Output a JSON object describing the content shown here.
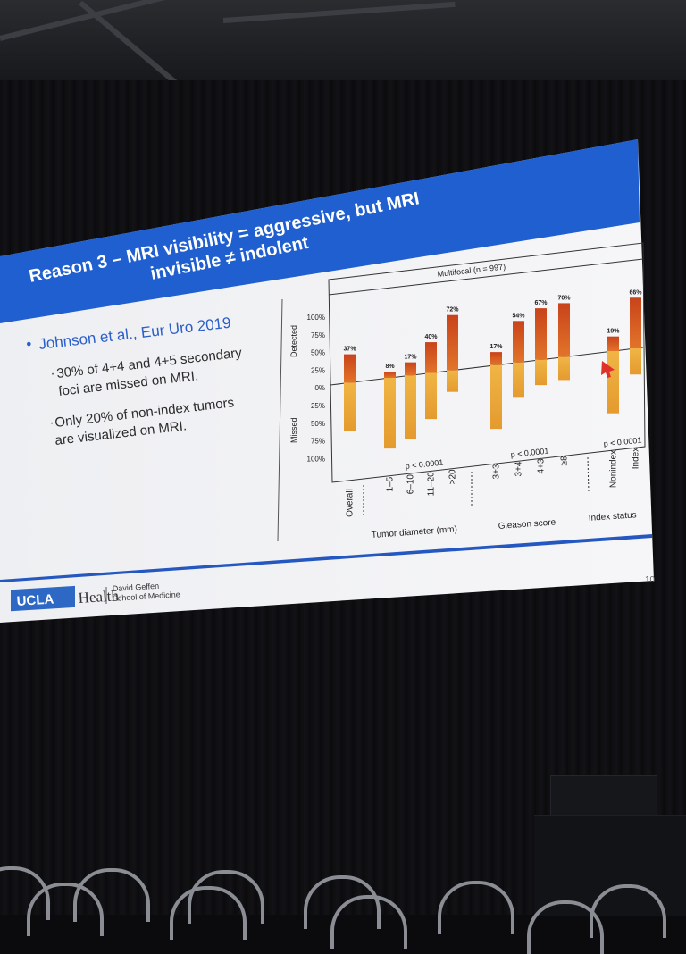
{
  "slide": {
    "title_line1": "Reason 3 – MRI visibility = aggressive, but MRI",
    "title_line2": "invisible ≠ indolent",
    "bullet_main": "Johnson et al., Eur Uro 2019",
    "sub_bullet1_line1": "30% of 4+4 and 4+5 secondary",
    "sub_bullet1_line2": "foci are missed on MRI.",
    "sub_bullet2_line1": "Only 20% of non-index tumors",
    "sub_bullet2_line2": "are visualized on MRI.",
    "slide_number": "10",
    "footer": {
      "logo_text": "UCLA",
      "health_text": "Health",
      "school_line1": "David Geffen",
      "school_line2": "School of Medicine"
    },
    "colors": {
      "title_bar": "#1f5fcf",
      "detected": "#d95420",
      "missed": "#eda53a",
      "footer_line": "#2457c0"
    }
  },
  "chart_data": {
    "type": "bar",
    "title": "Multifocal (n = 997)",
    "ylabel_top": "Detected",
    "ylabel_bottom": "Missed",
    "y_ticks": [
      "100%",
      "75%",
      "50%",
      "25%",
      "0%",
      "25%",
      "50%",
      "75%",
      "100%"
    ],
    "ylim": [
      -100,
      100
    ],
    "categories": [
      "Overall",
      "1–5",
      "6–10",
      "11–20",
      ">20",
      "3+3",
      "3+4",
      "4+3",
      "≥8",
      "Nonindex",
      "Index"
    ],
    "detected_labels": [
      "37%",
      "8%",
      "17%",
      "40%",
      "72%",
      "17%",
      "54%",
      "67%",
      "70%",
      "19%",
      "66%"
    ],
    "detected": [
      37,
      8,
      17,
      40,
      72,
      17,
      54,
      67,
      70,
      19,
      66
    ],
    "missed": [
      63,
      92,
      83,
      60,
      28,
      83,
      46,
      33,
      30,
      81,
      34
    ],
    "groups": [
      {
        "label": "Tumor diameter (mm)",
        "p_value": "p < 0.0001"
      },
      {
        "label": "Gleason score",
        "p_value": "p < 0.0001"
      },
      {
        "label": "Index status",
        "p_value": "p < 0.0001"
      }
    ]
  }
}
